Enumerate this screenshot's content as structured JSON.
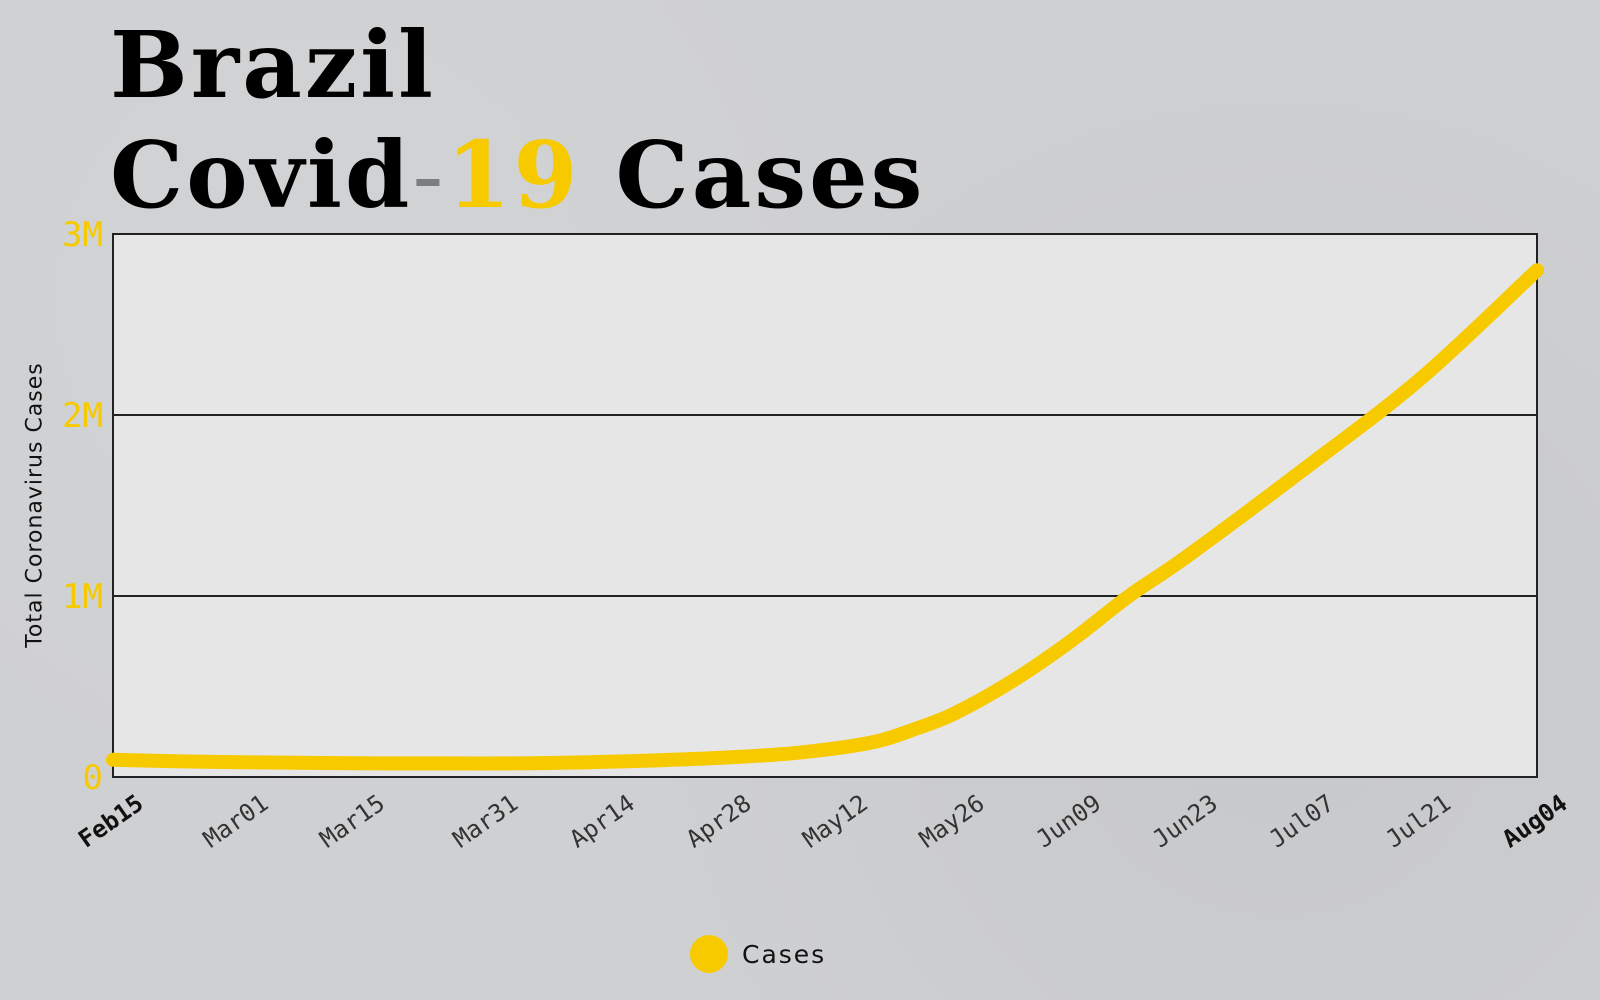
{
  "title": {
    "line1": "Brazil",
    "line2_prefix": "Covid",
    "line2_dash": "-",
    "line2_number": "19",
    "line2_suffix": "Cases"
  },
  "colors": {
    "accent": "#f7ca00",
    "plot_bg": "#e6e6e7",
    "page_bg": "#cfd0d2",
    "axis": "#222222"
  },
  "legend": {
    "label": "Cases",
    "icon": "circle-marker"
  },
  "chart_data": {
    "type": "line",
    "ylabel": "Total Coronavirus Cases",
    "ylim": [
      0,
      3000000
    ],
    "yticks": [
      {
        "value": 0,
        "label": "0"
      },
      {
        "value": 1000000,
        "label": "1M"
      },
      {
        "value": 2000000,
        "label": "2M"
      },
      {
        "value": 3000000,
        "label": "3M"
      }
    ],
    "grid": "horizontal",
    "x_range": [
      "2020-02-15",
      "2020-08-04"
    ],
    "xticks": [
      {
        "date": "2020-02-15",
        "label": "Feb15",
        "bold": true
      },
      {
        "date": "2020-03-01",
        "label": "Mar01",
        "bold": false
      },
      {
        "date": "2020-03-15",
        "label": "Mar15",
        "bold": false
      },
      {
        "date": "2020-03-31",
        "label": "Mar31",
        "bold": false
      },
      {
        "date": "2020-04-14",
        "label": "Apr14",
        "bold": false
      },
      {
        "date": "2020-04-28",
        "label": "Apr28",
        "bold": false
      },
      {
        "date": "2020-05-12",
        "label": "May12",
        "bold": false
      },
      {
        "date": "2020-05-26",
        "label": "May26",
        "bold": false
      },
      {
        "date": "2020-06-09",
        "label": "Jun09",
        "bold": false
      },
      {
        "date": "2020-06-23",
        "label": "Jun23",
        "bold": false
      },
      {
        "date": "2020-07-07",
        "label": "Jul07",
        "bold": false
      },
      {
        "date": "2020-07-21",
        "label": "Jul21",
        "bold": false
      },
      {
        "date": "2020-08-04",
        "label": "Aug04",
        "bold": true
      }
    ],
    "series": [
      {
        "name": "Cases",
        "points": [
          {
            "date": "2020-02-15",
            "y": 95000
          },
          {
            "date": "2020-02-25",
            "y": 85000
          },
          {
            "date": "2020-03-05",
            "y": 80000
          },
          {
            "date": "2020-03-15",
            "y": 76000
          },
          {
            "date": "2020-03-25",
            "y": 75000
          },
          {
            "date": "2020-04-05",
            "y": 76000
          },
          {
            "date": "2020-04-15",
            "y": 85000
          },
          {
            "date": "2020-04-25",
            "y": 100000
          },
          {
            "date": "2020-05-05",
            "y": 125000
          },
          {
            "date": "2020-05-12",
            "y": 160000
          },
          {
            "date": "2020-05-17",
            "y": 200000
          },
          {
            "date": "2020-05-21",
            "y": 260000
          },
          {
            "date": "2020-05-26",
            "y": 350000
          },
          {
            "date": "2020-06-02",
            "y": 530000
          },
          {
            "date": "2020-06-09",
            "y": 750000
          },
          {
            "date": "2020-06-16",
            "y": 1000000
          },
          {
            "date": "2020-06-23",
            "y": 1220000
          },
          {
            "date": "2020-07-07",
            "y": 1700000
          },
          {
            "date": "2020-07-21",
            "y": 2200000
          },
          {
            "date": "2020-08-04",
            "y": 2800000
          }
        ]
      }
    ]
  }
}
